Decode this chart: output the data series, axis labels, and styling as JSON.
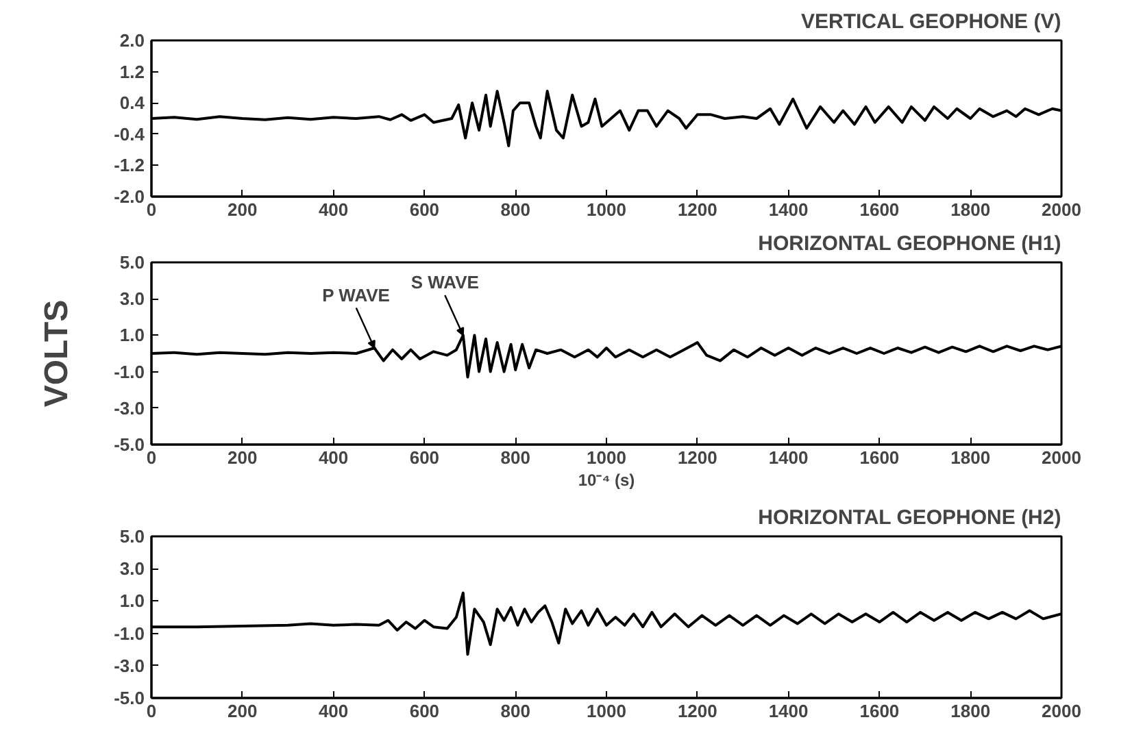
{
  "chart_data": [
    {
      "type": "line",
      "title": "VERTICAL GEOPHONE (V)",
      "xlim": [
        0,
        2000
      ],
      "xticks": [
        0,
        200,
        400,
        600,
        800,
        1000,
        1200,
        1400,
        1600,
        1800,
        2000
      ],
      "ylim": [
        -2.0,
        2.0
      ],
      "yticks": [
        {
          "value": -2.0,
          "label": "-2.0"
        },
        {
          "value": -1.2,
          "label": "-1.2"
        },
        {
          "value": -0.4,
          "label": "-0.4"
        },
        {
          "value": 0.4,
          "label": "0.4"
        },
        {
          "value": 1.2,
          "label": "1.2"
        },
        {
          "value": 2.0,
          "label": "2.0"
        }
      ],
      "grid": false,
      "marker": "none",
      "line_style": "solid",
      "series": [
        {
          "color": "#000000",
          "x": [
            0,
            50,
            100,
            150,
            200,
            250,
            300,
            350,
            400,
            450,
            500,
            525,
            550,
            570,
            600,
            620,
            660,
            675,
            690,
            705,
            720,
            735,
            745,
            760,
            775,
            785,
            795,
            810,
            830,
            845,
            855,
            870,
            890,
            905,
            925,
            945,
            960,
            975,
            990,
            1010,
            1030,
            1050,
            1070,
            1090,
            1110,
            1135,
            1160,
            1175,
            1200,
            1230,
            1260,
            1300,
            1330,
            1360,
            1380,
            1410,
            1440,
            1470,
            1500,
            1520,
            1545,
            1570,
            1590,
            1620,
            1650,
            1670,
            1700,
            1720,
            1750,
            1770,
            1800,
            1820,
            1850,
            1880,
            1900,
            1920,
            1950,
            1980,
            2000
          ],
          "values": [
            0,
            0.03,
            -0.02,
            0.05,
            0,
            -0.03,
            0.02,
            -0.02,
            0.03,
            0,
            0.05,
            -0.03,
            0.1,
            -0.05,
            0.1,
            -0.1,
            0,
            0.35,
            -0.5,
            0.4,
            -0.3,
            0.6,
            -0.2,
            0.7,
            -0.1,
            -0.7,
            0.2,
            0.4,
            0.4,
            -0.2,
            -0.5,
            0.7,
            -0.3,
            -0.5,
            0.6,
            -0.2,
            -0.1,
            0.5,
            -0.2,
            0,
            0.2,
            -0.3,
            0.2,
            0.2,
            -0.2,
            0.2,
            0,
            -0.25,
            0.1,
            0.1,
            0,
            0.05,
            0,
            0.25,
            -0.15,
            0.5,
            -0.25,
            0.3,
            -0.1,
            0.2,
            -0.15,
            0.3,
            -0.1,
            0.3,
            -0.1,
            0.3,
            -0.05,
            0.3,
            0,
            0.25,
            0,
            0.25,
            0.05,
            0.2,
            0.05,
            0.25,
            0.1,
            0.25,
            0.2
          ]
        }
      ]
    },
    {
      "type": "line",
      "title": "HORIZONTAL GEOPHONE (H1)",
      "xlabel": "10⁻⁴ (s)",
      "ylabel": "VOLTS",
      "xlim": [
        0,
        2000
      ],
      "xticks": [
        0,
        200,
        400,
        600,
        800,
        1000,
        1200,
        1400,
        1600,
        1800,
        2000
      ],
      "ylim": [
        -5.0,
        5.0
      ],
      "yticks": [
        {
          "value": -5.0,
          "label": "-5.0"
        },
        {
          "value": -3.0,
          "label": "-3.0"
        },
        {
          "value": -1.0,
          "label": "-1.0"
        },
        {
          "value": 1.0,
          "label": "1.0"
        },
        {
          "value": 3.0,
          "label": "3.0"
        },
        {
          "value": 5.0,
          "label": "5.0"
        }
      ],
      "grid": false,
      "marker": "none",
      "line_style": "solid",
      "annotations": [
        {
          "text": "P WAVE",
          "x": 490,
          "y": 0.3
        },
        {
          "text": "S WAVE",
          "x": 685,
          "y": 1.0
        }
      ],
      "series": [
        {
          "color": "#000000",
          "x": [
            0,
            50,
            100,
            150,
            200,
            250,
            300,
            350,
            400,
            450,
            490,
            510,
            530,
            550,
            570,
            590,
            620,
            650,
            670,
            685,
            695,
            710,
            720,
            735,
            745,
            760,
            775,
            790,
            800,
            815,
            830,
            845,
            870,
            900,
            930,
            960,
            980,
            1000,
            1020,
            1050,
            1080,
            1110,
            1140,
            1170,
            1200,
            1220,
            1250,
            1280,
            1310,
            1340,
            1370,
            1400,
            1430,
            1460,
            1490,
            1520,
            1550,
            1580,
            1610,
            1640,
            1670,
            1700,
            1730,
            1760,
            1790,
            1820,
            1850,
            1880,
            1910,
            1940,
            1970,
            2000
          ],
          "values": [
            0,
            0.05,
            -0.05,
            0.05,
            0,
            -0.05,
            0.05,
            0,
            0.05,
            0,
            0.3,
            -0.4,
            0.2,
            -0.3,
            0.2,
            -0.3,
            0.1,
            -0.1,
            0.2,
            1.0,
            -1.3,
            1.0,
            -1.0,
            0.8,
            -1.0,
            0.6,
            -1.0,
            0.5,
            -0.9,
            0.5,
            -0.8,
            0.2,
            0,
            0.2,
            -0.2,
            0.2,
            -0.2,
            0.3,
            -0.2,
            0.2,
            -0.2,
            0.2,
            -0.2,
            0.2,
            0.6,
            -0.1,
            -0.4,
            0.2,
            -0.2,
            0.3,
            -0.1,
            0.3,
            -0.1,
            0.3,
            0,
            0.3,
            0,
            0.3,
            0,
            0.3,
            0.05,
            0.35,
            0.05,
            0.35,
            0.1,
            0.4,
            0.1,
            0.4,
            0.15,
            0.4,
            0.2,
            0.4
          ]
        }
      ]
    },
    {
      "type": "line",
      "title": "HORIZONTAL GEOPHONE (H2)",
      "xlim": [
        0,
        2000
      ],
      "xticks": [
        0,
        200,
        400,
        600,
        800,
        1000,
        1200,
        1400,
        1600,
        1800,
        2000
      ],
      "ylim": [
        -5.0,
        5.0
      ],
      "yticks": [
        {
          "value": -5.0,
          "label": "-5.0"
        },
        {
          "value": -3.0,
          "label": "-3.0"
        },
        {
          "value": -1.0,
          "label": "-1.0"
        },
        {
          "value": 1.0,
          "label": "1.0"
        },
        {
          "value": 3.0,
          "label": "3.0"
        },
        {
          "value": 5.0,
          "label": "5.0"
        }
      ],
      "grid": false,
      "marker": "none",
      "line_style": "solid",
      "series": [
        {
          "color": "#000000",
          "x": [
            0,
            100,
            200,
            300,
            350,
            400,
            450,
            500,
            520,
            540,
            560,
            580,
            600,
            620,
            650,
            670,
            685,
            695,
            710,
            730,
            745,
            760,
            775,
            790,
            805,
            820,
            835,
            850,
            865,
            880,
            895,
            910,
            925,
            945,
            960,
            980,
            1000,
            1020,
            1040,
            1060,
            1080,
            1100,
            1120,
            1150,
            1180,
            1210,
            1240,
            1270,
            1300,
            1330,
            1360,
            1390,
            1420,
            1450,
            1480,
            1510,
            1540,
            1570,
            1600,
            1630,
            1660,
            1690,
            1720,
            1750,
            1780,
            1810,
            1840,
            1870,
            1900,
            1930,
            1960,
            2000
          ],
          "values": [
            -0.6,
            -0.6,
            -0.55,
            -0.5,
            -0.4,
            -0.5,
            -0.45,
            -0.5,
            -0.2,
            -0.8,
            -0.3,
            -0.7,
            -0.2,
            -0.6,
            -0.7,
            0,
            1.5,
            -2.3,
            0.5,
            -0.3,
            -1.7,
            0.5,
            -0.2,
            0.6,
            -0.5,
            0.5,
            -0.3,
            0.3,
            0.7,
            -0.3,
            -1.6,
            0.5,
            -0.4,
            0.4,
            -0.5,
            0.5,
            -0.5,
            0,
            -0.5,
            0.2,
            -0.6,
            0.3,
            -0.6,
            0.2,
            -0.6,
            0.1,
            -0.5,
            0.1,
            -0.5,
            0.1,
            -0.5,
            0.1,
            -0.4,
            0.2,
            -0.4,
            0.2,
            -0.3,
            0.2,
            -0.3,
            0.3,
            -0.3,
            0.3,
            -0.2,
            0.3,
            -0.2,
            0.3,
            -0.1,
            0.3,
            -0.1,
            0.4,
            -0.1,
            0.2
          ]
        }
      ]
    }
  ]
}
